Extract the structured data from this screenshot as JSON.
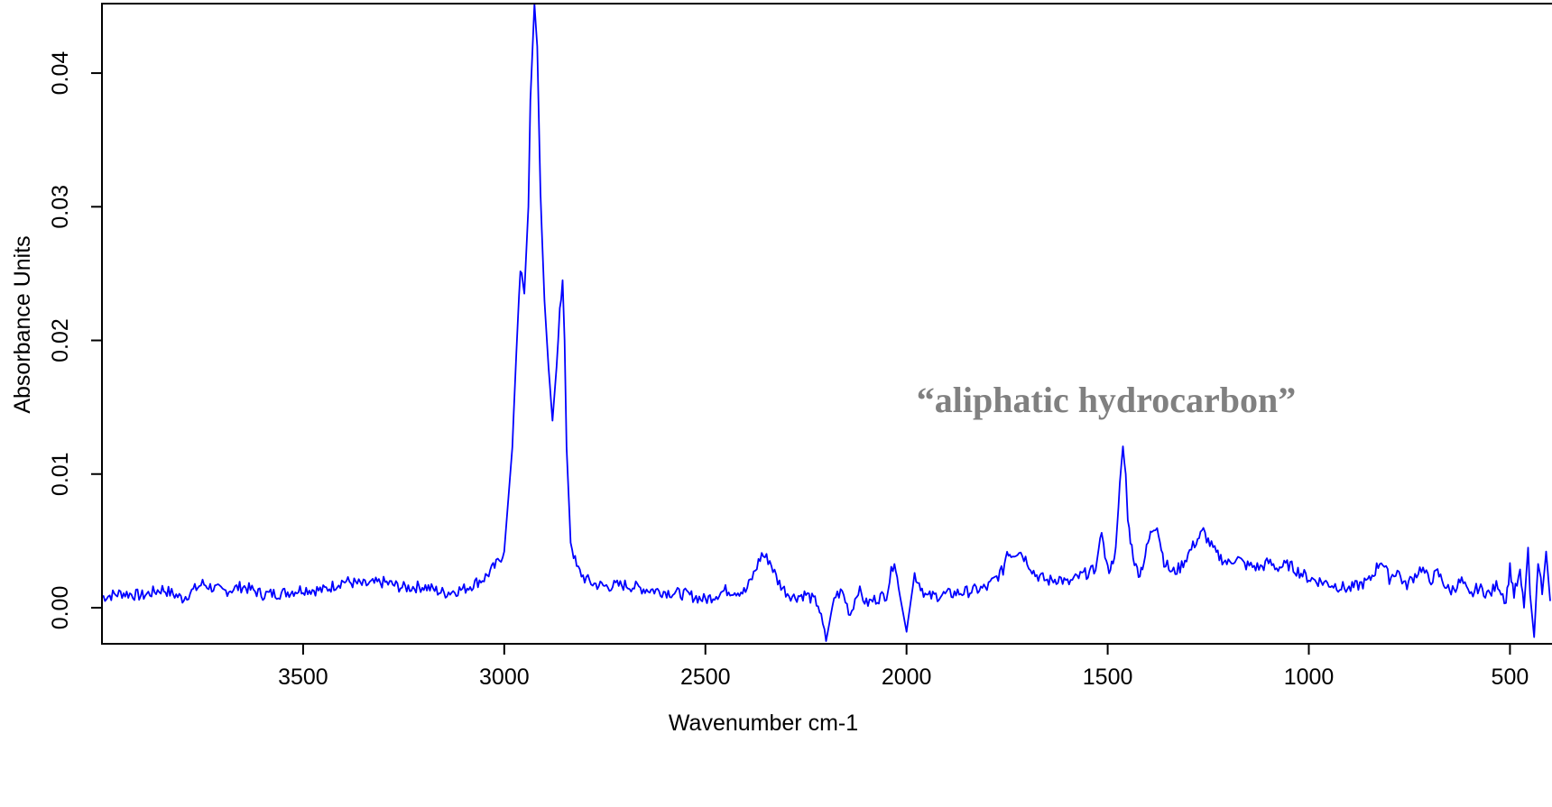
{
  "chart_data": {
    "type": "line",
    "xlabel": "Wavenumber cm-1",
    "ylabel": "Absorbance Units",
    "annotation": "“aliphatic hydrocarbon”",
    "x_reversed": true,
    "xlim": [
      4000,
      400
    ],
    "ylim": [
      -0.0027,
      0.0452
    ],
    "x_ticks": [
      3500,
      3000,
      2500,
      2000,
      1500,
      1000,
      500
    ],
    "x_tick_labels": [
      "3500",
      "3000",
      "2500",
      "2000",
      "1500",
      "1000",
      "500"
    ],
    "y_ticks": [
      0.0,
      0.01,
      0.02,
      0.03,
      0.04
    ],
    "y_tick_labels": [
      "0.00",
      "0.01",
      "0.02",
      "0.03",
      "0.04"
    ],
    "line_color": "#0000ff",
    "grid": false,
    "series": [
      {
        "x": [
          4000,
          3950,
          3900,
          3850,
          3800,
          3750,
          3700,
          3650,
          3600,
          3550,
          3500,
          3450,
          3400,
          3350,
          3300,
          3250,
          3200,
          3150,
          3100,
          3050,
          3020,
          3000,
          2980,
          2970,
          2960,
          2950,
          2940,
          2935,
          2925,
          2918,
          2910,
          2900,
          2890,
          2880,
          2870,
          2862,
          2855,
          2850,
          2845,
          2835,
          2820,
          2800,
          2780,
          2750,
          2700,
          2650,
          2600,
          2550,
          2500,
          2450,
          2400,
          2380,
          2360,
          2340,
          2320,
          2300,
          2280,
          2250,
          2220,
          2200,
          2180,
          2160,
          2140,
          2120,
          2100,
          2080,
          2050,
          2030,
          2020,
          2000,
          1980,
          1950,
          1900,
          1850,
          1800,
          1760,
          1750,
          1740,
          1720,
          1700,
          1680,
          1650,
          1620,
          1600,
          1560,
          1530,
          1515,
          1510,
          1500,
          1490,
          1480,
          1470,
          1462,
          1455,
          1450,
          1440,
          1430,
          1420,
          1410,
          1400,
          1390,
          1377,
          1370,
          1360,
          1340,
          1320,
          1300,
          1280,
          1262,
          1250,
          1230,
          1200,
          1180,
          1160,
          1120,
          1100,
          1080,
          1050,
          1000,
          950,
          900,
          850,
          820,
          800,
          780,
          760,
          720,
          700,
          680,
          650,
          620,
          600,
          580,
          550,
          530,
          510,
          500,
          490,
          475,
          465,
          455,
          450,
          440,
          430,
          420,
          410,
          400
        ],
        "y": [
          0.0008,
          0.0011,
          0.0009,
          0.0014,
          0.0007,
          0.0018,
          0.0012,
          0.0016,
          0.001,
          0.0011,
          0.0014,
          0.0013,
          0.002,
          0.0017,
          0.0019,
          0.0015,
          0.0016,
          0.0011,
          0.0014,
          0.0022,
          0.0032,
          0.0042,
          0.012,
          0.019,
          0.0255,
          0.0235,
          0.03,
          0.038,
          0.0452,
          0.042,
          0.031,
          0.023,
          0.018,
          0.014,
          0.018,
          0.022,
          0.0245,
          0.02,
          0.012,
          0.005,
          0.003,
          0.0022,
          0.0018,
          0.0016,
          0.0017,
          0.0014,
          0.0012,
          0.001,
          0.0006,
          0.0013,
          0.0012,
          0.0025,
          0.004,
          0.0035,
          0.002,
          0.0012,
          0.0008,
          0.001,
          0.0003,
          -0.0025,
          0.0008,
          0.0012,
          -0.0005,
          0.0014,
          0.0003,
          0.0006,
          0.001,
          0.0037,
          0.0015,
          -0.0018,
          0.0025,
          0.0008,
          0.001,
          0.0012,
          0.0015,
          0.0028,
          0.0043,
          0.004,
          0.0043,
          0.0035,
          0.0025,
          0.002,
          0.0022,
          0.0018,
          0.0025,
          0.0028,
          0.006,
          0.0045,
          0.0028,
          0.0032,
          0.0045,
          0.009,
          0.0118,
          0.01,
          0.0065,
          0.0045,
          0.003,
          0.0026,
          0.0035,
          0.0048,
          0.0058,
          0.0063,
          0.005,
          0.0035,
          0.0026,
          0.003,
          0.004,
          0.005,
          0.0057,
          0.005,
          0.004,
          0.0033,
          0.0038,
          0.0032,
          0.003,
          0.0034,
          0.003,
          0.0032,
          0.0022,
          0.0018,
          0.0014,
          0.002,
          0.0036,
          0.0022,
          0.0028,
          0.0016,
          0.003,
          0.002,
          0.0026,
          0.0012,
          0.002,
          0.0008,
          0.0015,
          0.001,
          0.0018,
          0.0005,
          0.003,
          0.001,
          0.0025,
          0.0,
          0.0045,
          0.001,
          -0.0022,
          0.0035,
          0.001,
          0.0042,
          0.0005
        ]
      }
    ]
  }
}
